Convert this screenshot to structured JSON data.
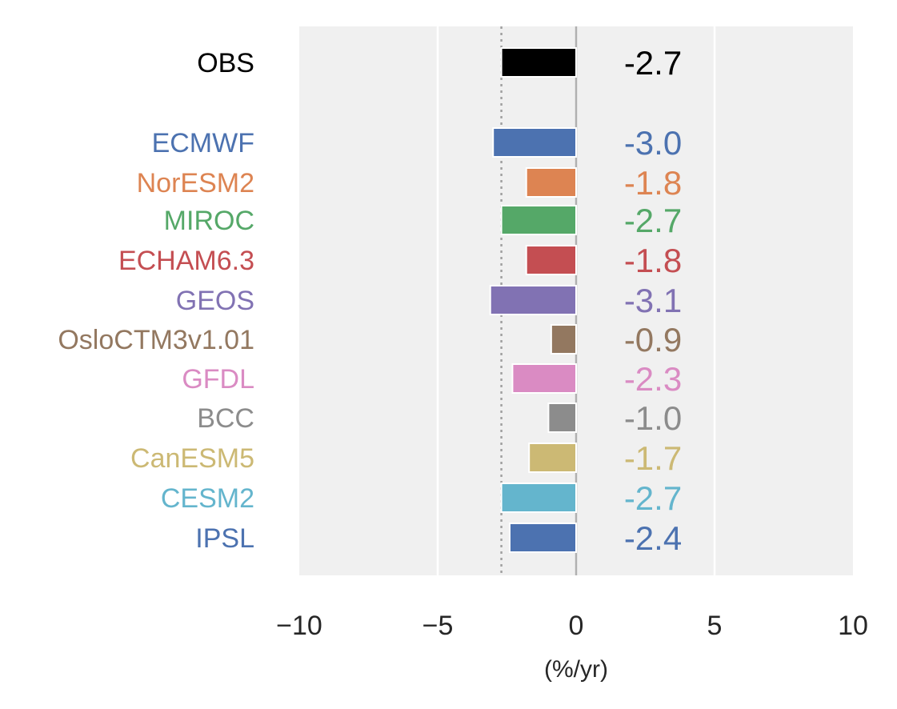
{
  "chart_data": {
    "type": "bar",
    "orientation": "horizontal",
    "xlabel": "(%/yr)",
    "xlim": [
      -10,
      10
    ],
    "xticks": [
      -10,
      -5,
      0,
      5,
      10
    ],
    "xtick_labels": [
      "−10",
      "−5",
      "0",
      "5",
      "10"
    ],
    "grid": true,
    "reference_line": {
      "x": -2.7,
      "style": "dotted",
      "color": "#a0a0a0"
    },
    "zero_line": {
      "x": 0,
      "color": "#b0b0b0"
    },
    "categories": [
      "OBS",
      "ECMWF",
      "NorESM2",
      "MIROC",
      "ECHAM6.3",
      "GEOS",
      "OsloCTM3v1.01",
      "GFDL",
      "BCC",
      "CanESM5",
      "CESM2",
      "IPSL"
    ],
    "values": [
      -2.7,
      -3.0,
      -1.8,
      -2.7,
      -1.8,
      -3.1,
      -0.9,
      -2.3,
      -1.0,
      -1.7,
      -2.7,
      -2.4
    ],
    "value_labels": [
      "-2.7",
      "-3.0",
      "-1.8",
      "-2.7",
      "-1.8",
      "-3.1",
      "-0.9",
      "-2.3",
      "-1.0",
      "-1.7",
      "-2.7",
      "-2.4"
    ],
    "colors": [
      "#000000",
      "#4c72b0",
      "#dd8452",
      "#55a868",
      "#c44e52",
      "#8172b3",
      "#937860",
      "#da8bc3",
      "#8c8c8c",
      "#ccb974",
      "#64b5cd",
      "#4c72b0"
    ],
    "background_color": "#f0f0f0"
  }
}
